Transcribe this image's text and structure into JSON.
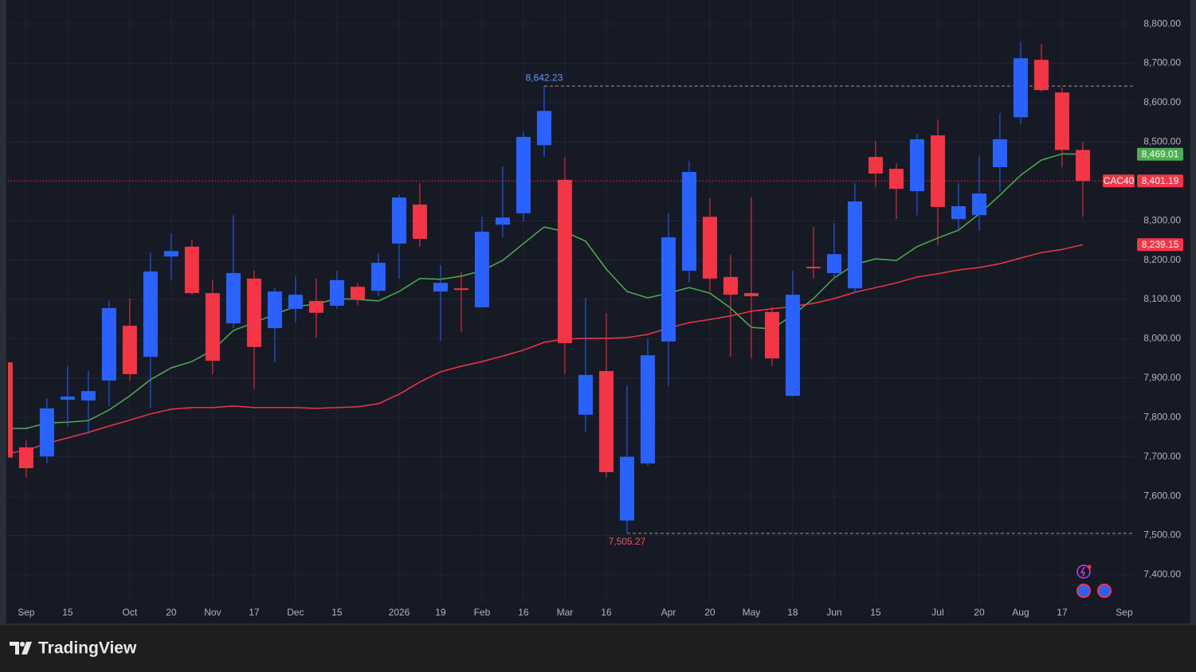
{
  "chart_data": {
    "type": "candlestick",
    "symbol": "CAC40",
    "x": [
      -1,
      0,
      1,
      2,
      3,
      4,
      5,
      6,
      7,
      8,
      9,
      10,
      11,
      12,
      13,
      14,
      15,
      16,
      17,
      18,
      19,
      20,
      21,
      22,
      23,
      24,
      25,
      26,
      27,
      28,
      29,
      30,
      31,
      32,
      33,
      34,
      35,
      36,
      37,
      38,
      39,
      40,
      41,
      42,
      43,
      44,
      45,
      46,
      47,
      48,
      49,
      50,
      51
    ],
    "open": [
      7940,
      7724,
      7701,
      7845,
      7843,
      7894,
      8033,
      7954,
      8209,
      8234,
      8116,
      8039,
      8153,
      8027,
      8076,
      8096,
      8084,
      8132,
      8122,
      8242,
      8341,
      8120,
      8128,
      8080,
      8290,
      8319,
      8492,
      8404,
      7807,
      7918,
      7538,
      7683,
      7993,
      8173,
      8310,
      8157,
      8116,
      8068,
      7855,
      8183,
      8167,
      8128,
      8462,
      8432,
      8375,
      8517,
      8304,
      8314,
      8436,
      8563,
      8709,
      8626,
      8480
    ],
    "high": [
      7940,
      7742,
      7849,
      7930,
      7918,
      8096,
      8102,
      8219,
      8268,
      8252,
      8149,
      8314,
      8173,
      8130,
      8159,
      8153,
      8173,
      8142,
      8217,
      8367,
      8395,
      8187,
      8169,
      8310,
      8438,
      8527,
      8642.23,
      8462,
      8104,
      8066,
      7882,
      8001,
      8319,
      8452,
      8357,
      8213,
      8359,
      8082,
      8173,
      8284,
      8294,
      8395,
      8503,
      8446,
      8521,
      8557,
      8395,
      8466,
      8573,
      8755,
      8749,
      8638,
      8501
    ],
    "low": [
      7695,
      7647,
      7683,
      7778,
      7758,
      7829,
      7894,
      7825,
      8149,
      8112,
      7910,
      8027,
      7873,
      7940,
      8041,
      8003,
      8076,
      8086,
      8108,
      8153,
      8234,
      7995,
      8017,
      8080,
      8258,
      8298,
      8462,
      7910,
      7764,
      7647,
      7505.27,
      7677,
      7880,
      8143,
      8122,
      7954,
      7950,
      7930,
      7853,
      8153,
      8153,
      8116,
      8385,
      8304,
      8314,
      8238,
      8274,
      8274,
      8375,
      8547,
      8628,
      8436,
      8310
    ],
    "close": [
      7698,
      7671,
      7823,
      7853,
      7867,
      8078,
      7910,
      8171,
      8223,
      8116,
      7944,
      8167,
      7979,
      8120,
      8112,
      8066,
      8149,
      8100,
      8193,
      8359,
      8254,
      8142,
      8124,
      8272,
      8308,
      8513,
      8579,
      7989,
      7908,
      7661,
      7700,
      7958,
      8258,
      8424,
      8153,
      8112,
      8108,
      7950,
      8112,
      8179,
      8215,
      8349,
      8420,
      8381,
      8507,
      8335,
      8337,
      8369,
      8507,
      8713,
      8632,
      8480,
      8401.19
    ],
    "close_label": "8,401.19",
    "up_color": "#2962ff",
    "down_color": "#f23645",
    "overlays": [
      {
        "color": "#4caf50",
        "last_label": "8,469.01",
        "values": [
          7772,
          7772,
          7786,
          7788,
          7792,
          7819,
          7855,
          7896,
          7926,
          7942,
          7971,
          8021,
          8041,
          8062,
          8082,
          8088,
          8102,
          8100,
          8096,
          8120,
          8153,
          8151,
          8159,
          8173,
          8199,
          8242,
          8284,
          8272,
          8248,
          8177,
          8120,
          8104,
          8116,
          8130,
          8116,
          8078,
          8029,
          8025,
          8060,
          8102,
          8155,
          8189,
          8203,
          8199,
          8234,
          8256,
          8276,
          8317,
          8365,
          8416,
          8454,
          8470,
          8469.01
        ]
      },
      {
        "color": "#f23645",
        "last_label": "8,239.15",
        "values": [
          7708,
          7716,
          7734,
          7748,
          7762,
          7778,
          7793,
          7809,
          7821,
          7825,
          7825,
          7829,
          7825,
          7825,
          7825,
          7823,
          7825,
          7827,
          7835,
          7859,
          7890,
          7916,
          7930,
          7942,
          7956,
          7971,
          7991,
          7999,
          8001,
          8001,
          8003,
          8011,
          8027,
          8041,
          8049,
          8058,
          8070,
          8076,
          8082,
          8090,
          8102,
          8118,
          8130,
          8142,
          8157,
          8165,
          8175,
          8181,
          8191,
          8205,
          8219,
          8227,
          8239.15
        ]
      }
    ],
    "annotations": [
      {
        "value": 8642.23,
        "label": "8,642.23",
        "x": 25,
        "position": "above",
        "color": "#5b9cf6"
      },
      {
        "value": 7505.27,
        "label": "7,505.27",
        "x": 29,
        "position": "below",
        "color": "#f7525f"
      }
    ],
    "xlim": [
      -0.88,
      53.54
    ],
    "ylim": [
      7329,
      8861
    ],
    "xticks": [
      {
        "value": 0,
        "label": "Sep"
      },
      {
        "value": 2,
        "label": "15"
      },
      {
        "value": 5,
        "label": "Oct"
      },
      {
        "value": 7,
        "label": "20"
      },
      {
        "value": 9,
        "label": "Nov"
      },
      {
        "value": 11,
        "label": "17"
      },
      {
        "value": 13,
        "label": "Dec"
      },
      {
        "value": 15,
        "label": "15"
      },
      {
        "value": 18,
        "label": "2026"
      },
      {
        "value": 20,
        "label": "19"
      },
      {
        "value": 22,
        "label": "Feb"
      },
      {
        "value": 24,
        "label": "16"
      },
      {
        "value": 26,
        "label": "Mar"
      },
      {
        "value": 28,
        "label": "16"
      },
      {
        "value": 31,
        "label": "Apr"
      },
      {
        "value": 33,
        "label": "20"
      },
      {
        "value": 35,
        "label": "May"
      },
      {
        "value": 37,
        "label": "18"
      },
      {
        "value": 39,
        "label": "Jun"
      },
      {
        "value": 41,
        "label": "15"
      },
      {
        "value": 44,
        "label": "Jul"
      },
      {
        "value": 46,
        "label": "20"
      },
      {
        "value": 48,
        "label": "Aug"
      },
      {
        "value": 50,
        "label": "17"
      },
      {
        "value": 53,
        "label": "Sep"
      }
    ],
    "yticks": [
      {
        "value": 7400,
        "label": "7,400.00"
      },
      {
        "value": 7500,
        "label": "7,500.00"
      },
      {
        "value": 7600,
        "label": "7,600.00"
      },
      {
        "value": 7700,
        "label": "7,700.00"
      },
      {
        "value": 7800,
        "label": "7,800.00"
      },
      {
        "value": 7900,
        "label": "7,900.00"
      },
      {
        "value": 8000,
        "label": "8,000.00"
      },
      {
        "value": 8100,
        "label": "8,100.00"
      },
      {
        "value": 8200,
        "label": "8,200.00"
      },
      {
        "value": 8300,
        "label": "8,300.00"
      },
      {
        "value": 8400,
        "label": "8,400.00"
      },
      {
        "value": 8500,
        "label": "8,500.00"
      },
      {
        "value": 8600,
        "label": "8,600.00"
      },
      {
        "value": 8700,
        "label": "8,700.00"
      },
      {
        "value": 8800,
        "label": "8,800.00"
      }
    ],
    "grid": true
  },
  "logo": "TradingView"
}
